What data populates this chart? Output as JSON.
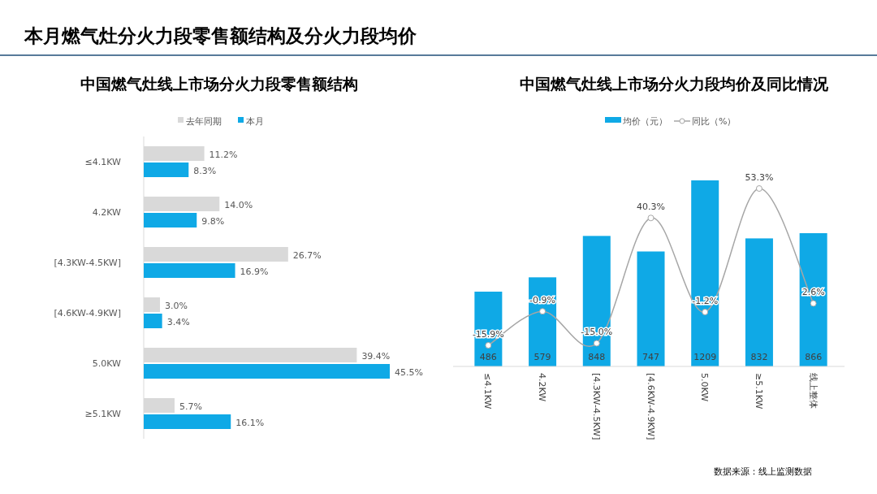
{
  "chart_data": [
    {
      "type": "bar",
      "orientation": "horizontal",
      "title": "中国燃气灶线上市场分火力段零售额结构",
      "categories": [
        "≤4.1KW",
        "4.2KW",
        "[4.3KW-4.5KW]",
        "[4.6KW-4.9KW]",
        "5.0KW",
        "≥5.1KW"
      ],
      "series": [
        {
          "name": "去年同期",
          "color": "#d9d9d9",
          "values": [
            11.2,
            14.0,
            26.7,
            3.0,
            39.4,
            5.7
          ],
          "value_labels": [
            "11.2%",
            "14.0%",
            "26.7%",
            "3.0%",
            "39.4%",
            "5.7%"
          ]
        },
        {
          "name": "本月",
          "color": "#0fa9e6",
          "values": [
            8.3,
            9.8,
            16.9,
            3.4,
            45.5,
            16.1
          ],
          "value_labels": [
            "8.3%",
            "9.8%",
            "16.9%",
            "3.4%",
            "45.5%",
            "16.1%"
          ]
        }
      ],
      "legend": "top",
      "tick_labels": "y",
      "annotations": [
        "本月燃气灶分火力段零售额结构及分火力段均价"
      ]
    },
    {
      "type": "bar",
      "title": "中国燃气灶线上市场分火力段均价及同比情况",
      "categories": [
        "≤4.1KW",
        "4.2KW",
        "[4.3KW-4.5KW]",
        "[4.6KW-4.9KW]",
        "5.0KW",
        "≥5.1KW",
        "线上整体"
      ],
      "series": [
        {
          "name": "均价（元）",
          "type": "bar",
          "color": "#0fa9e6",
          "values": [
            486,
            579,
            848,
            747,
            1209,
            832,
            866
          ],
          "value_labels": [
            "486",
            "579",
            "848",
            "747",
            "1209",
            "832",
            "866"
          ]
        },
        {
          "name": "同比（%）",
          "type": "line",
          "axis": "y2",
          "color": "#a6a6a6",
          "marker": "circle",
          "values": [
            -15.9,
            -0.9,
            -15.0,
            40.3,
            -1.2,
            53.3,
            2.6
          ],
          "value_labels": [
            "-15.9%",
            "-0.9%",
            "-15.0%",
            "40.3%",
            "-1.2%",
            "53.3%",
            "2.6%"
          ]
        }
      ],
      "legend": "top",
      "tick_labels": "x",
      "annotations": [
        "数据来源：线上监测数据"
      ]
    }
  ]
}
